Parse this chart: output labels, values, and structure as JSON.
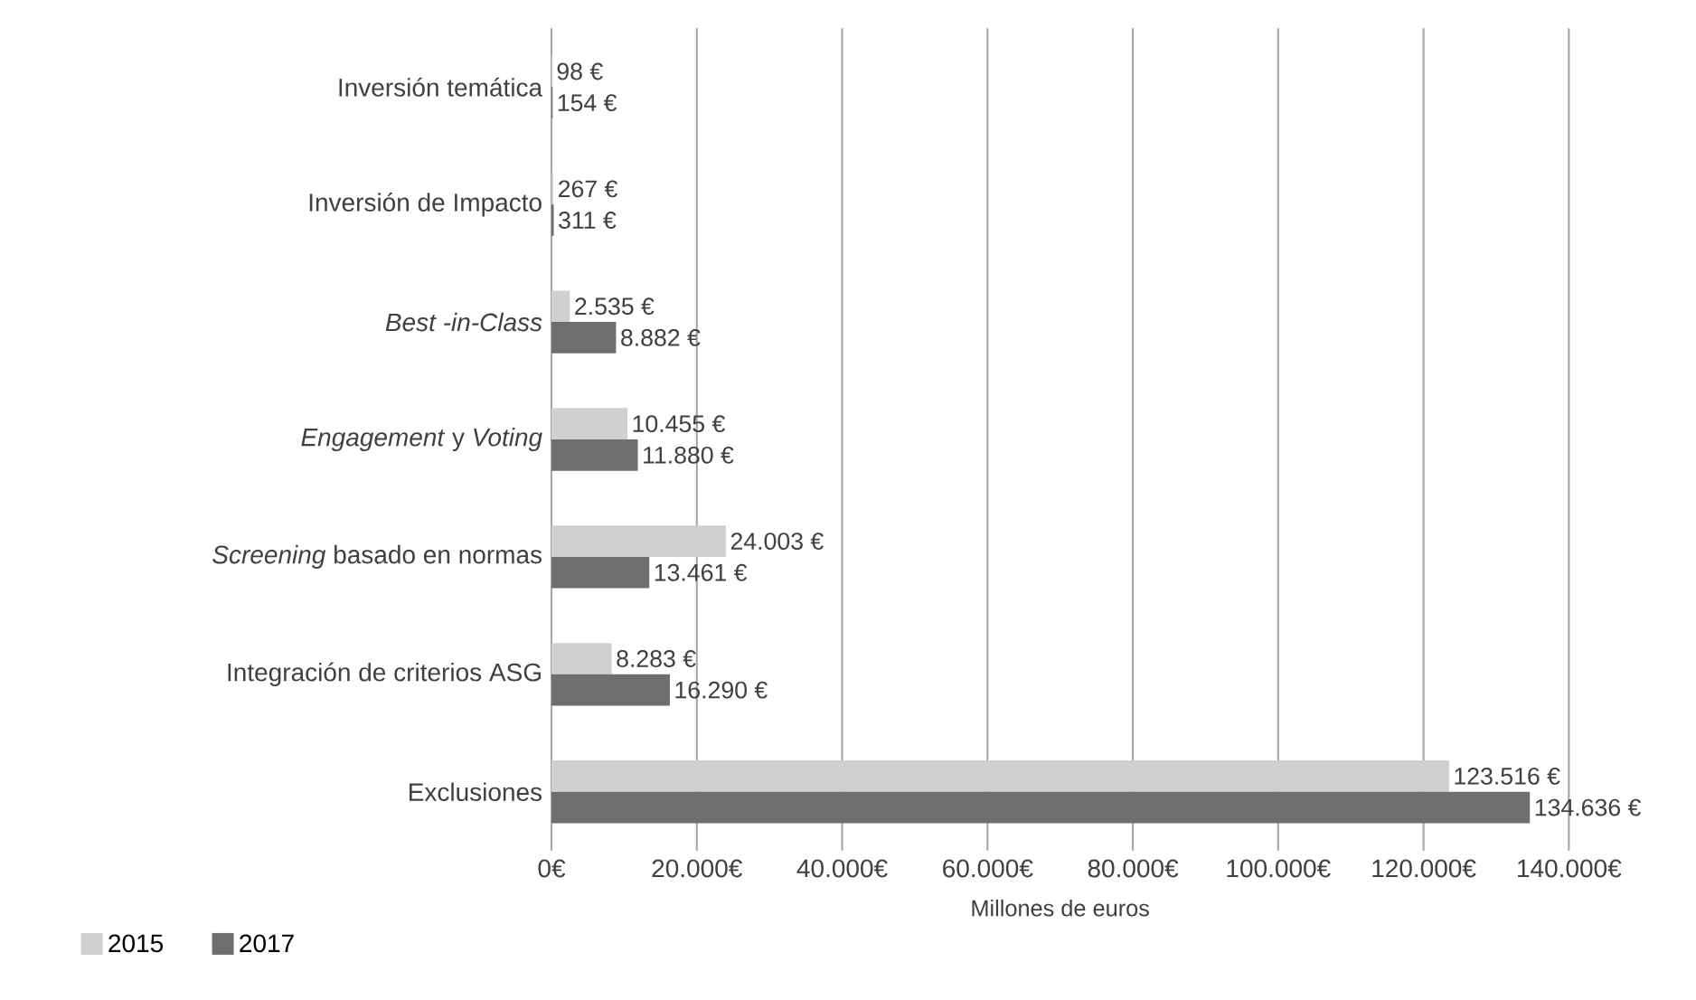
{
  "chart_data": {
    "type": "bar",
    "orientation": "horizontal",
    "categories": [
      "Inversión temática",
      "Inversión de Impacto",
      "*Best -in-Class*",
      "*Engagement* y *Voting*",
      "*Screening* basado en normas",
      "Integración de criterios ASG",
      "Exclusiones"
    ],
    "series": [
      {
        "name": "2015",
        "color": "#d0d0d0",
        "values": [
          98,
          267,
          2535,
          10455,
          24003,
          8283,
          123516
        ],
        "value_labels": [
          "98 €",
          "267 €",
          "2.535 €",
          "10.455 €",
          "24.003 €",
          "8.283 €",
          "123.516 €"
        ]
      },
      {
        "name": "2017",
        "color": "#6e6e6e",
        "values": [
          154,
          311,
          8882,
          11880,
          13461,
          16290,
          134636
        ],
        "value_labels": [
          "154 €",
          "311 €",
          "8.882 €",
          "11.880 €",
          "13.461 €",
          "16.290 €",
          "134.636 €"
        ]
      }
    ],
    "xlabel": "Millones de euros",
    "xlim": [
      0,
      140000
    ],
    "xticks": [
      {
        "value": 0,
        "label": "0€"
      },
      {
        "value": 20000,
        "label": "20.000€"
      },
      {
        "value": 40000,
        "label": "40.000€"
      },
      {
        "value": 60000,
        "label": "60.000€"
      },
      {
        "value": 80000,
        "label": "80.000€"
      },
      {
        "value": 100000,
        "label": "100.000€"
      },
      {
        "value": 120000,
        "label": "120.000€"
      },
      {
        "value": 140000,
        "label": "140.000€"
      }
    ],
    "grid": "x",
    "legend": "bottom left"
  }
}
